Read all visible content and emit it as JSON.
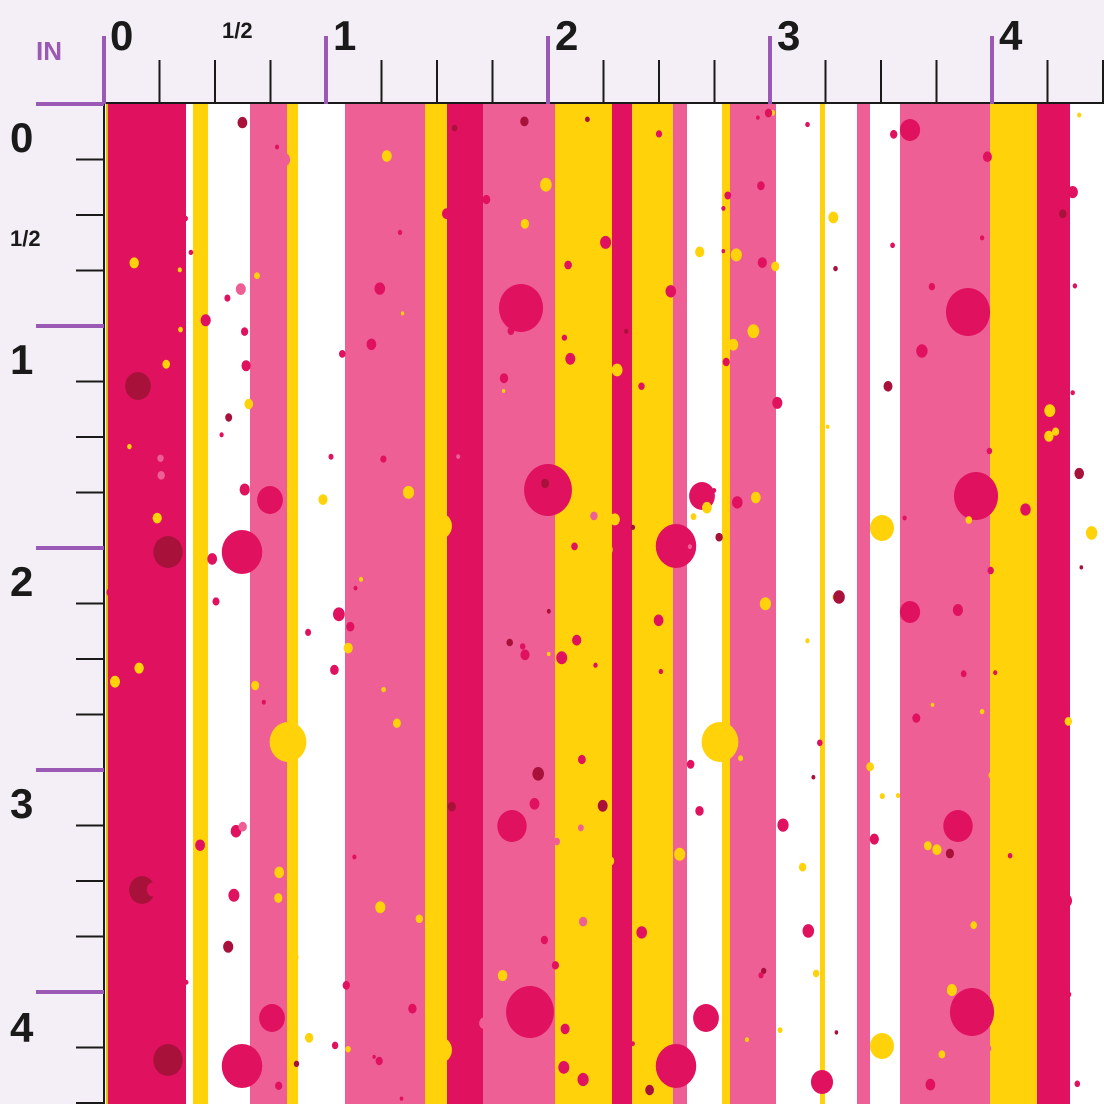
{
  "ruler": {
    "unit": "IN",
    "top_labels": [
      "0",
      "1/2",
      "1",
      "2",
      "3",
      "4"
    ],
    "left_labels": [
      "0",
      "1/2",
      "1",
      "2",
      "3",
      "4"
    ]
  },
  "colors": {
    "background": "#f4eff6",
    "ruler_major": "#9b59b6",
    "ruler_minor": "#1a1a1a",
    "magenta": "#e0115f",
    "pink": "#ee5f95",
    "yellow": "#ffd20a",
    "white": "#ffffff",
    "dark_red": "#a8123a"
  },
  "pattern": {
    "description_visible": false,
    "stripe_colors": [
      "magenta",
      "white",
      "yellow",
      "white",
      "pink",
      "yellow",
      "white",
      "pink",
      "yellow",
      "magenta",
      "pink",
      "yellow",
      "magenta",
      "yellow",
      "pink",
      "white",
      "yellow",
      "pink",
      "white",
      "yellow",
      "white",
      "pink",
      "white",
      "pink",
      "yellow",
      "magenta",
      "white",
      "yellow"
    ]
  }
}
